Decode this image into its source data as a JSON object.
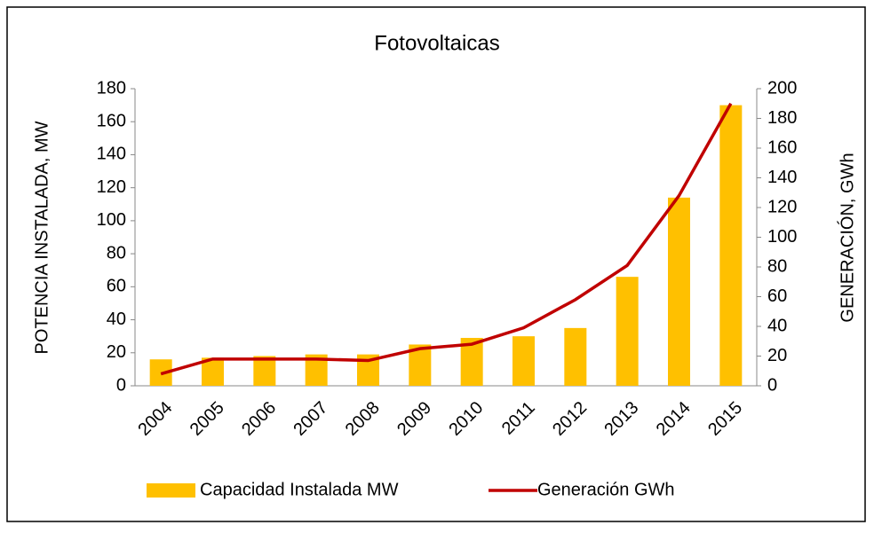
{
  "chart_data": {
    "type": "bar-line",
    "title": "Fotovoltaicas",
    "y_label": "POTENCIA INSTALADA,  MW",
    "y2_label": "GENERACIÓN,  GWh",
    "categories": [
      "2004",
      "2005",
      "2006",
      "2007",
      "2008",
      "2009",
      "2010",
      "2011",
      "2012",
      "2013",
      "2014",
      "2015"
    ],
    "series": [
      {
        "name": "Capacidad Instalada MW",
        "type": "bar",
        "color": "#FFC000",
        "values": [
          16,
          17,
          18,
          19,
          19,
          25,
          29,
          30,
          35,
          66,
          114,
          170
        ]
      },
      {
        "name": "Generación GWh",
        "type": "line",
        "axis": "y2",
        "color": "#C00000",
        "values": [
          8,
          18,
          18,
          18,
          17,
          25,
          28,
          39,
          58,
          81,
          128,
          190
        ]
      }
    ],
    "ylim": [
      0,
      180
    ],
    "yticks": [
      0,
      20,
      40,
      60,
      80,
      100,
      120,
      140,
      160,
      180
    ],
    "y2lim": [
      0,
      200
    ],
    "y2ticks": [
      0,
      20,
      40,
      60,
      80,
      100,
      120,
      140,
      160,
      180,
      200
    ],
    "legend": "bottom"
  }
}
